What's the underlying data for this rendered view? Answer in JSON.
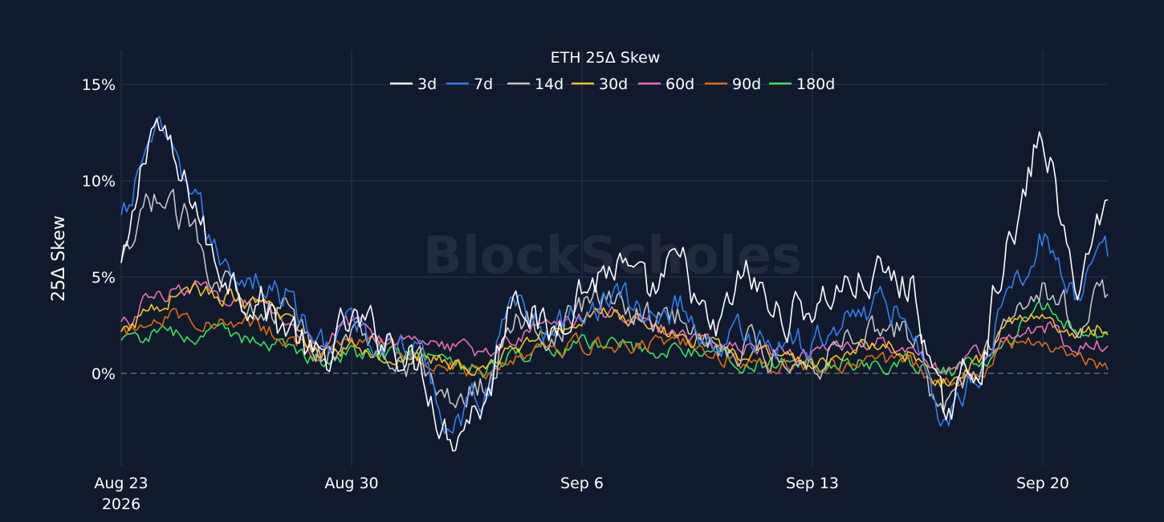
{
  "chart_data": {
    "type": "line",
    "title": "ETH 25Δ Skew",
    "xlabel": "",
    "ylabel": "25Δ Skew",
    "watermark": "BlockScholes",
    "x_ticks": [
      {
        "label": "Aug 23",
        "sublabel": "2026",
        "day": 0
      },
      {
        "label": "Aug 30",
        "sublabel": "",
        "day": 7
      },
      {
        "label": "Sep 6",
        "sublabel": "",
        "day": 14
      },
      {
        "label": "Sep 13",
        "sublabel": "",
        "day": 21
      },
      {
        "label": "Sep 20",
        "sublabel": "",
        "day": 28
      }
    ],
    "y_ticks": [
      {
        "label": "0%",
        "value": 0
      },
      {
        "label": "5%",
        "value": 5
      },
      {
        "label": "10%",
        "value": 10
      },
      {
        "label": "15%",
        "value": 15
      }
    ],
    "xlim": [
      "2026-08-23",
      "2026-09-22"
    ],
    "ylim": [
      -4.8,
      16.8
    ],
    "grid": true,
    "legend_position": "top-center",
    "zero_line": "dashed",
    "colors": {
      "background": "#101a2c",
      "grid": "#263656",
      "text": "#ffffff"
    },
    "x": [
      "2026-08-23",
      "2026-08-24",
      "2026-08-25",
      "2026-08-26",
      "2026-08-27",
      "2026-08-28",
      "2026-08-29",
      "2026-08-30",
      "2026-08-31",
      "2026-09-01",
      "2026-09-02",
      "2026-09-03",
      "2026-09-04",
      "2026-09-05",
      "2026-09-06",
      "2026-09-07",
      "2026-09-08",
      "2026-09-09",
      "2026-09-10",
      "2026-09-11",
      "2026-09-12",
      "2026-09-13",
      "2026-09-14",
      "2026-09-15",
      "2026-09-16",
      "2026-09-17",
      "2026-09-18",
      "2026-09-19",
      "2026-09-20",
      "2026-09-21",
      "2026-09-22"
    ],
    "series": [
      {
        "name": "3d",
        "color": "#ffffff",
        "values": [
          5.5,
          13.0,
          9.5,
          5.5,
          4.0,
          2.5,
          0.5,
          2.5,
          2.0,
          0.5,
          -3.0,
          -1.5,
          4.5,
          2.0,
          4.5,
          5.5,
          4.0,
          5.5,
          2.0,
          5.0,
          3.0,
          3.5,
          4.5,
          5.0,
          4.5,
          -2.0,
          0.5,
          6.5,
          12.0,
          5.0,
          8.5
        ]
      },
      {
        "name": "7d",
        "color": "#2f7ef0",
        "values": [
          8.0,
          12.5,
          10.0,
          6.0,
          5.0,
          4.0,
          1.5,
          2.5,
          1.5,
          1.0,
          -2.5,
          -1.0,
          4.0,
          2.0,
          3.5,
          4.0,
          3.0,
          3.5,
          1.5,
          2.0,
          1.5,
          1.5,
          3.0,
          3.5,
          3.0,
          -2.5,
          0.0,
          4.5,
          7.0,
          4.0,
          6.0
        ]
      },
      {
        "name": "14d",
        "color": "#c4c4c4",
        "values": [
          5.5,
          9.0,
          8.0,
          5.0,
          4.0,
          3.0,
          1.0,
          2.0,
          1.5,
          0.5,
          -1.5,
          -0.5,
          3.0,
          2.0,
          3.5,
          4.0,
          3.0,
          3.0,
          1.5,
          1.5,
          1.0,
          0.5,
          2.0,
          2.5,
          2.0,
          -2.0,
          0.5,
          3.5,
          4.5,
          3.0,
          4.0
        ]
      },
      {
        "name": "30d",
        "color": "#f5c22a",
        "values": [
          2.0,
          3.5,
          4.5,
          4.0,
          3.5,
          3.0,
          1.0,
          1.5,
          1.0,
          1.0,
          0.5,
          0.0,
          1.5,
          2.0,
          3.0,
          3.0,
          2.5,
          2.0,
          1.5,
          1.0,
          0.8,
          0.5,
          1.0,
          1.5,
          1.0,
          -0.5,
          0.5,
          2.5,
          3.0,
          2.0,
          2.5
        ]
      },
      {
        "name": "60d",
        "color": "#f06cb5",
        "values": [
          2.5,
          4.0,
          4.5,
          4.0,
          3.5,
          2.5,
          1.5,
          2.5,
          2.0,
          2.0,
          1.5,
          1.0,
          2.0,
          2.5,
          3.0,
          3.0,
          2.5,
          2.0,
          1.5,
          1.5,
          1.0,
          1.0,
          1.5,
          1.5,
          1.0,
          0.0,
          1.0,
          2.0,
          2.5,
          1.5,
          1.5
        ]
      },
      {
        "name": "90d",
        "color": "#e26a12",
        "values": [
          2.0,
          3.0,
          3.0,
          2.5,
          2.5,
          2.0,
          1.0,
          1.5,
          1.5,
          1.0,
          0.5,
          0.0,
          1.0,
          1.5,
          1.5,
          1.5,
          1.5,
          1.5,
          1.0,
          0.5,
          0.5,
          0.5,
          0.5,
          0.5,
          0.5,
          -0.5,
          0.0,
          1.5,
          1.5,
          1.0,
          0.5
        ]
      },
      {
        "name": "180d",
        "color": "#3ee05c",
        "values": [
          1.5,
          2.0,
          2.0,
          2.0,
          1.8,
          1.5,
          0.8,
          1.0,
          1.0,
          1.0,
          0.5,
          0.2,
          0.8,
          1.0,
          1.5,
          1.5,
          1.2,
          1.2,
          1.0,
          0.5,
          0.5,
          0.5,
          0.5,
          0.5,
          0.5,
          0.0,
          0.5,
          2.0,
          3.5,
          2.5,
          2.0
        ]
      }
    ]
  }
}
